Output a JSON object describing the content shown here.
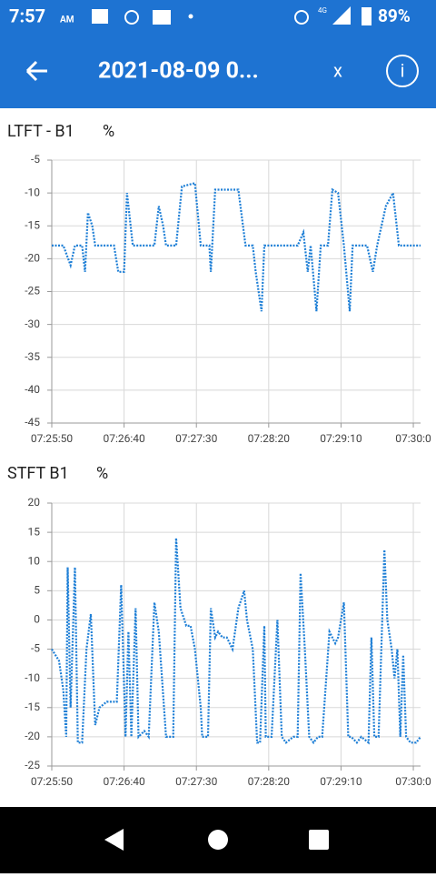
{
  "status_bar": {
    "time": "7:57",
    "ampm": "AM",
    "network": "4G",
    "battery": "89%"
  },
  "app_bar": {
    "title": "2021-08-09 0...",
    "close": "x"
  },
  "chart_data": [
    {
      "type": "line",
      "title": "LTFT - B1",
      "unit": "%",
      "color": "#1e7fd6",
      "grid": true,
      "x": [
        26750,
        26758,
        26763,
        26766,
        26771,
        26773,
        26775,
        26778,
        26780,
        26793,
        26796,
        26800,
        26802,
        26806,
        26821,
        26824,
        26827,
        26829,
        26836,
        26840,
        26849,
        26853,
        26859,
        26860,
        26863,
        26879,
        26884,
        26889,
        26891,
        26895,
        26897,
        26920,
        26924,
        26927,
        26929,
        26933,
        26936,
        26941,
        26944,
        26948,
        26952,
        26956,
        26958,
        26968,
        26972,
        26975,
        26981,
        26986,
        26990,
        27005
      ],
      "values": [
        -18,
        -18,
        -21,
        -18,
        -18,
        -22,
        -13,
        -15,
        -18,
        -18,
        -22,
        -22,
        -10,
        -18,
        -18,
        -12,
        -15,
        -18,
        -18,
        -9,
        -8.5,
        -18,
        -18,
        -22,
        -9.5,
        -9.5,
        -18,
        -18,
        -22,
        -28,
        -18,
        -18,
        -16,
        -22,
        -18,
        -28,
        -18,
        -18,
        -9.5,
        -10,
        -18,
        -28,
        -18,
        -18,
        -22,
        -18,
        -12,
        -10,
        -18,
        -18
      ],
      "xlim": [
        26750,
        27005
      ],
      "xticks": [
        {
          "value": 26750,
          "label": "07:25:50"
        },
        {
          "value": 26800,
          "label": "07:26:40"
        },
        {
          "value": 26850,
          "label": "07:27:30"
        },
        {
          "value": 26900,
          "label": "07:28:20"
        },
        {
          "value": 26950,
          "label": "07:29:10"
        },
        {
          "value": 27000,
          "label": "07:30:0"
        }
      ],
      "ylim": [
        -45,
        -5
      ],
      "yticks": [
        -5,
        -10,
        -15,
        -20,
        -25,
        -30,
        -35,
        -40,
        -45
      ]
    },
    {
      "type": "line",
      "title": "STFT B1",
      "unit": "%",
      "color": "#1e7fd6",
      "grid": true,
      "x": [
        26750,
        26755,
        26758,
        26760,
        26761,
        26763,
        26766,
        26768,
        26771,
        26774,
        26777,
        26780,
        26783,
        26788,
        26795,
        26798,
        26801,
        26803,
        26805,
        26808,
        26810,
        26814,
        26817,
        26821,
        26824,
        26829,
        26834,
        26836,
        26839,
        26843,
        26846,
        26849,
        26853,
        26854,
        26858,
        26860,
        26863,
        26865,
        26868,
        26871,
        26875,
        26879,
        26883,
        26885,
        26889,
        26892,
        26894,
        26897,
        26898,
        26902,
        26906,
        26909,
        26912,
        26917,
        26920,
        26922,
        26925,
        26928,
        26931,
        26934,
        26937,
        26942,
        26946,
        26948,
        26952,
        26955,
        26957,
        26961,
        26964,
        26969,
        26971,
        26973,
        26976,
        26980,
        26982,
        26985,
        26987,
        26989,
        26991,
        26993,
        26995,
        26998,
        27002,
        27005
      ],
      "values": [
        -5,
        -7,
        -12,
        -20,
        9,
        -15,
        9,
        -21,
        -21,
        -5,
        1,
        -18,
        -15,
        -14,
        -14,
        6,
        -20,
        -2,
        -20,
        2,
        -20,
        -19,
        -20,
        3,
        -2,
        -20,
        -20,
        14,
        2,
        -1,
        -1,
        -5,
        -15,
        -20,
        -20,
        2,
        -3,
        -2,
        -3,
        -3,
        -5,
        2,
        5,
        0,
        -5,
        -21,
        -21,
        -1,
        -20,
        -20,
        0,
        -20,
        -21,
        -20,
        -20,
        8,
        -5,
        -20,
        -21,
        -20,
        -20,
        -2,
        -4,
        -3,
        3,
        -20,
        -20,
        -21,
        -20,
        -21,
        -3,
        -20,
        -20,
        12,
        0,
        -5,
        -10,
        -5,
        -20,
        -6,
        -20,
        -21,
        -21,
        -20
      ],
      "xlim": [
        26750,
        27005
      ],
      "xticks": [
        {
          "value": 26750,
          "label": "07:25:50"
        },
        {
          "value": 26800,
          "label": "07:26:40"
        },
        {
          "value": 26850,
          "label": "07:27:30"
        },
        {
          "value": 26900,
          "label": "07:28:20"
        },
        {
          "value": 26950,
          "label": "07:29:10"
        },
        {
          "value": 27000,
          "label": "07:30:0"
        }
      ],
      "ylim": [
        -25,
        20
      ],
      "yticks": [
        20,
        15,
        10,
        5,
        0,
        -5,
        -10,
        -15,
        -20,
        -25
      ]
    }
  ]
}
